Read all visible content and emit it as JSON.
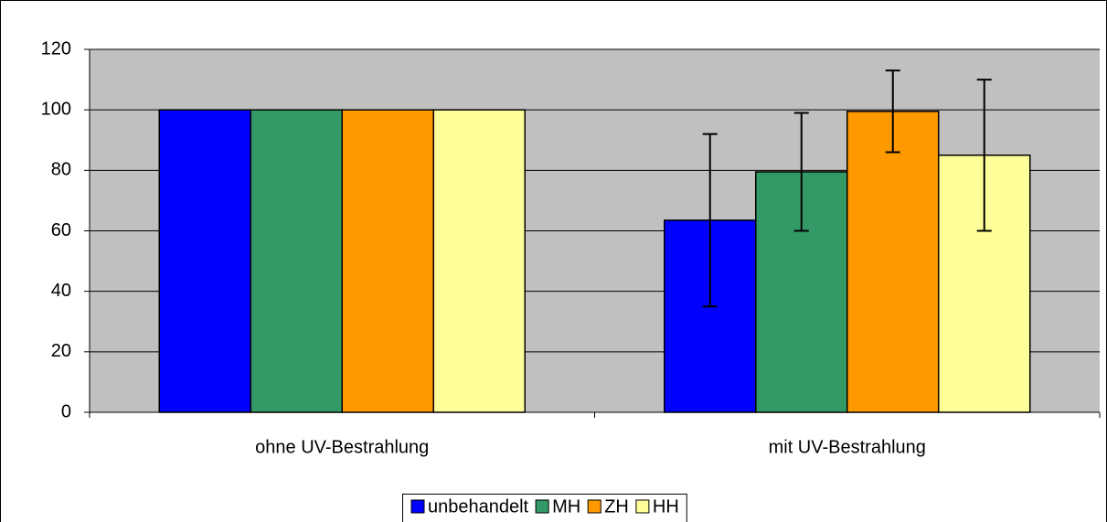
{
  "chart_data": {
    "type": "bar",
    "categories": [
      "ohne UV-Bestrahlung",
      "mit UV-Bestrahlung"
    ],
    "series": [
      {
        "name": "unbehandelt",
        "color": "#0000ff",
        "values": [
          100,
          63.5
        ],
        "errors": [
          null,
          28.5
        ]
      },
      {
        "name": "MH",
        "color": "#339966",
        "values": [
          100,
          79.5
        ],
        "errors": [
          null,
          19.5
        ]
      },
      {
        "name": "ZH",
        "color": "#ff9900",
        "values": [
          100,
          99.5
        ],
        "errors": [
          null,
          13.5
        ]
      },
      {
        "name": "HH",
        "color": "#ffff99",
        "values": [
          100,
          85
        ],
        "errors": [
          null,
          25
        ]
      }
    ],
    "ylim": [
      0,
      120
    ],
    "yticks": [
      0,
      20,
      40,
      60,
      80,
      100,
      120
    ],
    "grid": true,
    "plot_color": "#c0c0c0",
    "legend": "bottom"
  }
}
